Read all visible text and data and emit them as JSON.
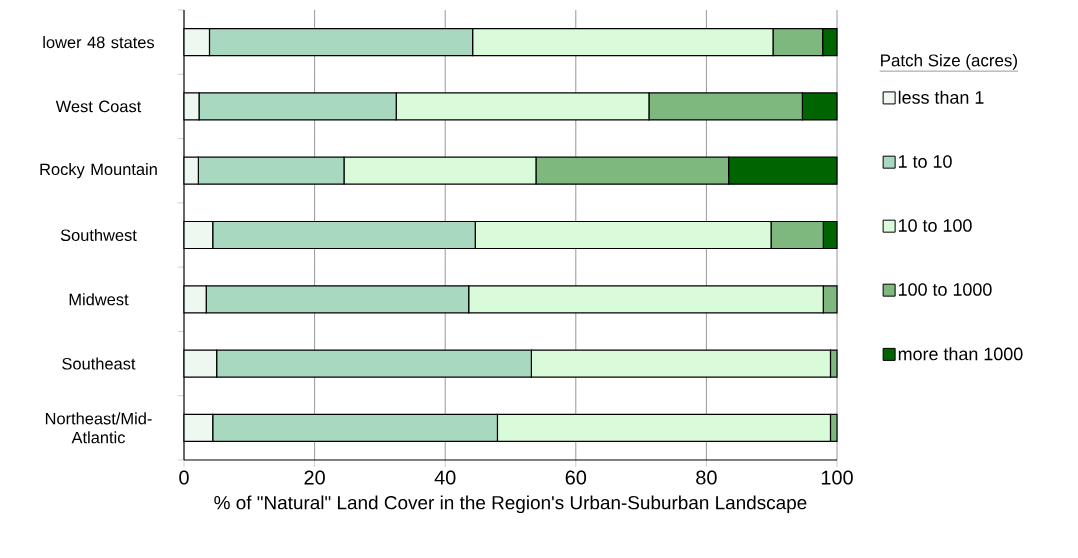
{
  "chart_data": {
    "type": "bar",
    "orientation": "horizontal",
    "stacked": true,
    "categories": [
      "lower 48 states",
      "West Coast",
      "Rocky Mountain",
      "Southwest",
      "Midwest",
      "Southeast",
      "Northeast/Mid-Atlantic"
    ],
    "series": [
      {
        "name": "less than 1",
        "color": "#eef7f0",
        "values": [
          3.9,
          2.3,
          2.2,
          4.4,
          3.4,
          5.0,
          4.4
        ]
      },
      {
        "name": "1 to 10",
        "color": "#a8d8c0",
        "values": [
          40.3,
          30.2,
          22.3,
          40.2,
          40.2,
          48.2,
          43.6
        ]
      },
      {
        "name": "10 to 100",
        "color": "#d9fbd9",
        "values": [
          46.0,
          38.7,
          29.4,
          45.3,
          54.3,
          45.8,
          51.0
        ]
      },
      {
        "name": "100 to 1000",
        "color": "#7fb87f",
        "values": [
          7.6,
          23.5,
          29.5,
          8.0,
          2.1,
          1.0,
          1.0
        ]
      },
      {
        "name": "more than 1000",
        "color": "#006400",
        "values": [
          2.2,
          5.3,
          16.6,
          2.1,
          0,
          0,
          0
        ]
      }
    ],
    "xlim": [
      0,
      100
    ],
    "xticks": [
      0,
      20,
      40,
      60,
      80,
      100
    ],
    "xlabel": "% of \"Natural\" Land Cover in the Region's Urban-Suburban Landscape",
    "legend_title": "Patch Size (acres)",
    "legend": "right",
    "grid": "x"
  }
}
